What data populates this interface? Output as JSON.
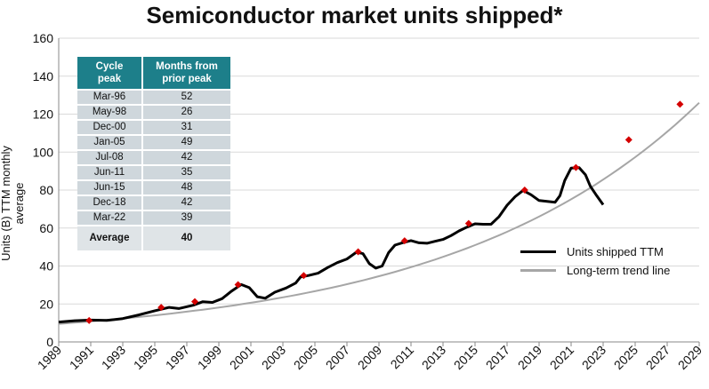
{
  "chart_data": {
    "type": "line",
    "title": "Semiconductor market units shipped*",
    "ylabel": "Units (B) TTM monthly average",
    "xlabel": "",
    "ylim": [
      0,
      160
    ],
    "xlim": [
      1989,
      2029
    ],
    "yticks": [
      "0",
      "20",
      "40",
      "60",
      "80",
      "100",
      "120",
      "140",
      "160"
    ],
    "xticks": [
      "1989",
      "1991",
      "1993",
      "1995",
      "1997",
      "1999",
      "2001",
      "2003",
      "2005",
      "2007",
      "2009",
      "2011",
      "2013",
      "2015",
      "2017",
      "2019",
      "2021",
      "2023",
      "2025",
      "2027",
      "2029"
    ],
    "series": [
      {
        "name": "Units shipped TTM",
        "color": "#000000",
        "x": [
          1989,
          1990,
          1991,
          1992,
          1993,
          1994,
          1995,
          1995.9,
          1996.5,
          1997.4,
          1998.0,
          1998.6,
          1999.2,
          1999.8,
          2000.4,
          2000.9,
          2001.4,
          2001.9,
          2002.5,
          2003.2,
          2003.8,
          2004.1,
          2004.6,
          2005.2,
          2005.8,
          2006.4,
          2007.0,
          2007.6,
          2008.0,
          2008.4,
          2008.8,
          2009.2,
          2009.6,
          2010.0,
          2010.5,
          2011.0,
          2011.5,
          2012.0,
          2012.5,
          2013.0,
          2013.5,
          2014.0,
          2014.5,
          2015.0,
          2015.5,
          2016.0,
          2016.5,
          2017.0,
          2017.5,
          2018.0,
          2018.5,
          2019.0,
          2019.5,
          2020.0,
          2020.3,
          2020.6,
          2021.0,
          2021.5,
          2021.9,
          2022.2,
          2022.6,
          2023.0
        ],
        "values": [
          10.5,
          11.2,
          11.5,
          11.3,
          12.3,
          14.2,
          16.4,
          18.2,
          17.6,
          19.3,
          21.2,
          20.8,
          22.8,
          26.8,
          30.2,
          28.6,
          23.8,
          23.0,
          26.2,
          28.4,
          31.0,
          34.2,
          35.0,
          36.2,
          39.2,
          41.8,
          43.7,
          47.3,
          46.5,
          41.2,
          38.9,
          40.0,
          47.0,
          51.0,
          52.3,
          53.4,
          52.2,
          52.0,
          53.0,
          54.0,
          56.0,
          58.5,
          60.5,
          62.2,
          62.0,
          62.0,
          66.0,
          72.0,
          76.5,
          79.8,
          77.5,
          74.5,
          74.0,
          73.6,
          77.0,
          85.0,
          91.6,
          91.8,
          88.0,
          82.0,
          77.0,
          72.3
        ]
      },
      {
        "name": "Long-term trend line",
        "color": "#a6a6a6",
        "formula": "exponential",
        "x": [
          1989,
          2029
        ],
        "values": [
          9.5,
          126.0
        ]
      },
      {
        "name": "Cycle peaks",
        "color": "#d40000",
        "marker": "diamond",
        "x": [
          1990.9,
          1995.4,
          1997.5,
          2000.2,
          2004.3,
          2007.7,
          2010.6,
          2014.6,
          2018.1,
          2021.3,
          2024.6,
          2027.8
        ],
        "values": [
          11.3,
          18.2,
          21.2,
          30.2,
          35.0,
          47.5,
          53.3,
          62.4,
          80.0,
          91.9,
          106.5,
          125.2
        ]
      }
    ],
    "legend": [
      {
        "label": "Units shipped TTM",
        "color": "#000000"
      },
      {
        "label": "Long-term trend line",
        "color": "#a6a6a6"
      }
    ],
    "legend_position": "right"
  },
  "table": {
    "headers": [
      "Cycle\npeak",
      "Months from\nprior peak"
    ],
    "header_lines": [
      [
        "Cycle",
        "peak"
      ],
      [
        "Months from",
        "prior peak"
      ]
    ],
    "rows": [
      {
        "peak": "Mar-96",
        "months": "52"
      },
      {
        "peak": "May-98",
        "months": "26"
      },
      {
        "peak": "Dec-00",
        "months": "31"
      },
      {
        "peak": "Jan-05",
        "months": "49"
      },
      {
        "peak": "Jul-08",
        "months": "42"
      },
      {
        "peak": "Jun-11",
        "months": "35"
      },
      {
        "peak": "Jun-15",
        "months": "48"
      },
      {
        "peak": "Dec-18",
        "months": "42"
      },
      {
        "peak": "Mar-22",
        "months": "39"
      }
    ],
    "average_label": "Average",
    "average_value": "40"
  },
  "colors": {
    "header": "#1d7f8a",
    "row": "#cfd7dc",
    "grid": "#d9d9d9",
    "axis": "#888888"
  }
}
